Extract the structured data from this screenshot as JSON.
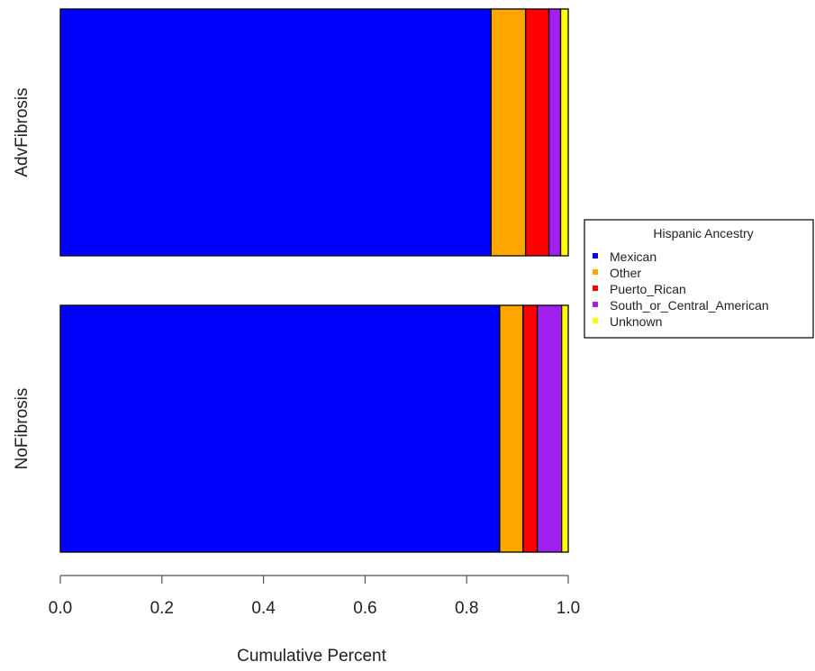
{
  "chart_data": {
    "type": "bar",
    "orientation": "horizontal",
    "stacked": true,
    "categories": [
      "AdvFibrosis",
      "NoFibrosis"
    ],
    "series": [
      {
        "name": "Mexican",
        "color": "#0000FF",
        "values": [
          0.848,
          0.865
        ]
      },
      {
        "name": "Other",
        "color": "#FFA500",
        "values": [
          0.068,
          0.046
        ]
      },
      {
        "name": "Puerto_Rican",
        "color": "#FF0000",
        "values": [
          0.046,
          0.028
        ]
      },
      {
        "name": "South_or_Central_American",
        "color": "#A020F0",
        "values": [
          0.023,
          0.048
        ]
      },
      {
        "name": "Unknown",
        "color": "#FFFF00",
        "values": [
          0.015,
          0.013
        ]
      }
    ],
    "xlabel": "Cumulative Percent",
    "ylabel": "",
    "xlim": [
      0,
      1
    ],
    "xticks": [
      "0.0",
      "0.2",
      "0.4",
      "0.6",
      "0.8",
      "1.0"
    ],
    "legend": {
      "title": "Hispanic Ancestry",
      "position": "right"
    },
    "grid": false
  }
}
